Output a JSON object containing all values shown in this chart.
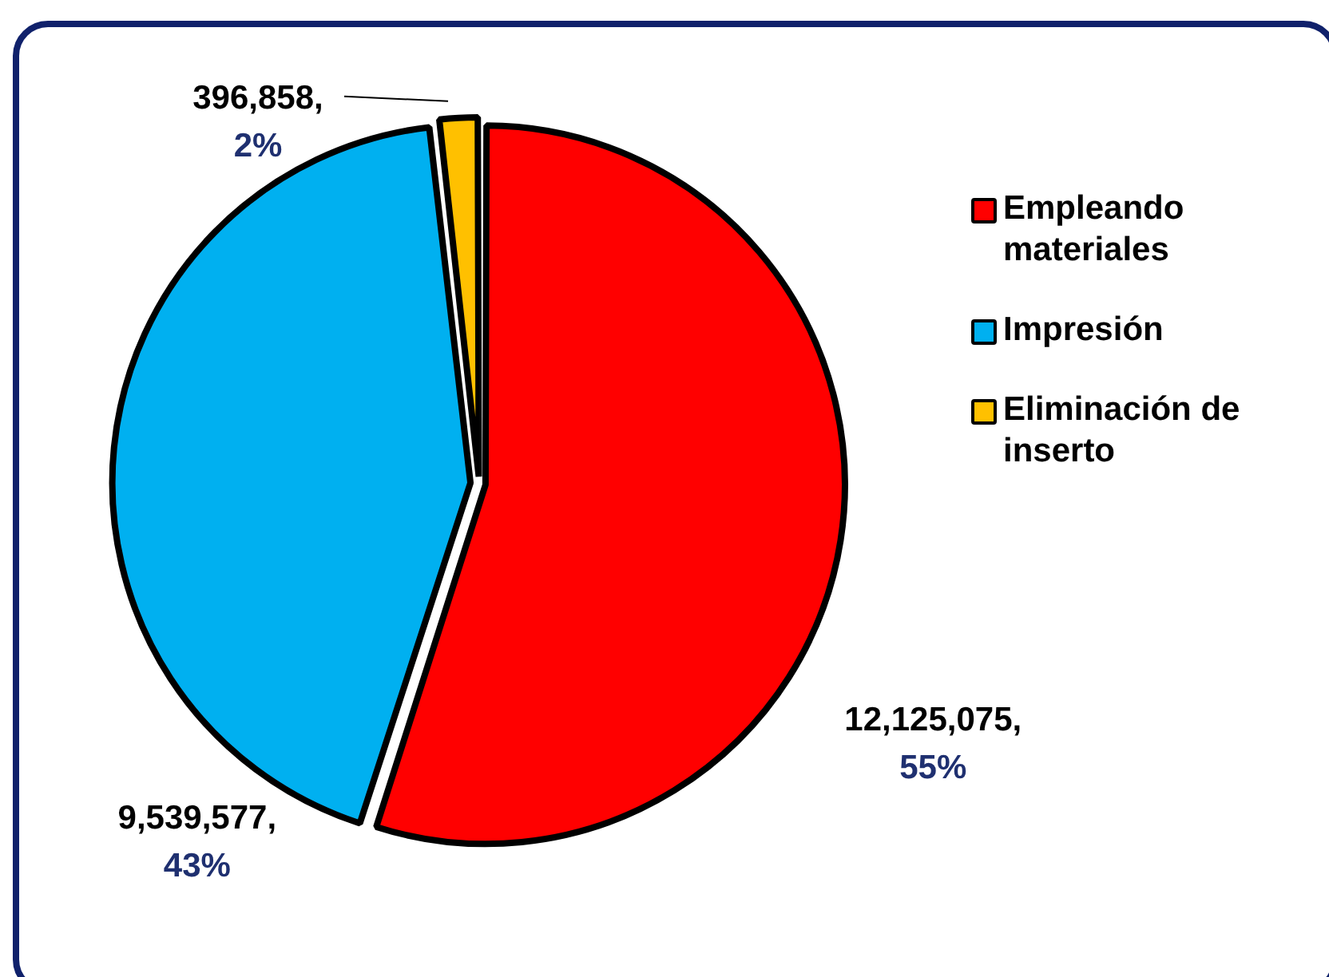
{
  "chart_data": {
    "type": "pie",
    "categories": [
      "Empleando materiales",
      "Impresión",
      "Eliminación de inserto"
    ],
    "values": [
      12125075,
      9539577,
      396858
    ],
    "colors": [
      "#ff0000",
      "#00b0f0",
      "#ffc000"
    ],
    "value_labels": [
      "12,125,075, 55%",
      "9,539,577, 43%",
      "396,858, 2%"
    ],
    "legend": "right"
  }
}
